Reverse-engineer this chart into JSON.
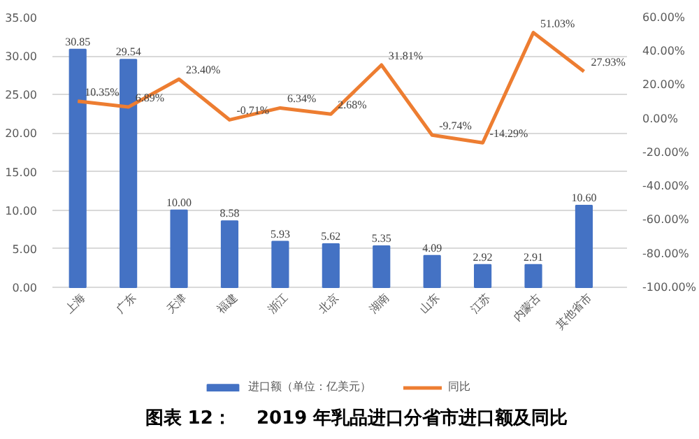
{
  "chart_data": {
    "type": "bar",
    "title": "图表 12：    2019 年乳品进口分省市进口额及同比",
    "categories": [
      "上海",
      "广东",
      "天津",
      "福建",
      "浙江",
      "北京",
      "湖南",
      "山东",
      "江苏",
      "内蒙古",
      "其他省市"
    ],
    "series": [
      {
        "name": "进口额（单位：亿美元）",
        "color": "#4472c4",
        "values": [
          30.85,
          29.54,
          10.0,
          8.58,
          5.93,
          5.62,
          5.35,
          4.09,
          2.92,
          2.91,
          10.6
        ],
        "value_labels": [
          "30.85",
          "29.54",
          "10.00",
          "8.58",
          "5.93",
          "5.62",
          "5.35",
          "4.09",
          "2.92",
          "2.91",
          "10.60"
        ]
      },
      {
        "name": "同比",
        "type": "line",
        "axis": "y2",
        "color": "#ed7d31",
        "values": [
          10.35,
          6.89,
          23.4,
          -0.71,
          6.34,
          2.68,
          31.81,
          -9.74,
          -14.29,
          51.03,
          27.93
        ],
        "value_labels": [
          "10.35%",
          "6.89%",
          "23.40%",
          "-0.71%",
          "6.34%",
          "2.68%",
          "31.81%",
          "-9.74%",
          "-14.29%",
          "51.03%",
          "27.93%"
        ]
      }
    ],
    "ylim": [
      0,
      35
    ],
    "yticks": [
      {
        "value": 0,
        "label": "0.00"
      },
      {
        "value": 5,
        "label": "5.00"
      },
      {
        "value": 10,
        "label": "10.00"
      },
      {
        "value": 15,
        "label": "15.00"
      },
      {
        "value": 20,
        "label": "20.00"
      },
      {
        "value": 25,
        "label": "25.00"
      },
      {
        "value": 30,
        "label": "30.00"
      },
      {
        "value": 35,
        "label": "35.00"
      }
    ],
    "y2lim": [
      -100,
      60
    ],
    "y2ticks": [
      {
        "value": -100,
        "label": "-100.00%"
      },
      {
        "value": -80,
        "label": "-80.00%"
      },
      {
        "value": -60,
        "label": "-60.00%"
      },
      {
        "value": -40,
        "label": "-40.00%"
      },
      {
        "value": -20,
        "label": "-20.00%"
      },
      {
        "value": 0,
        "label": "0.00%"
      },
      {
        "value": 20,
        "label": "20.00%"
      },
      {
        "value": 40,
        "label": "40.00%"
      },
      {
        "value": 60,
        "label": "60.00%"
      }
    ],
    "grid": "y",
    "legend": "bottom"
  }
}
